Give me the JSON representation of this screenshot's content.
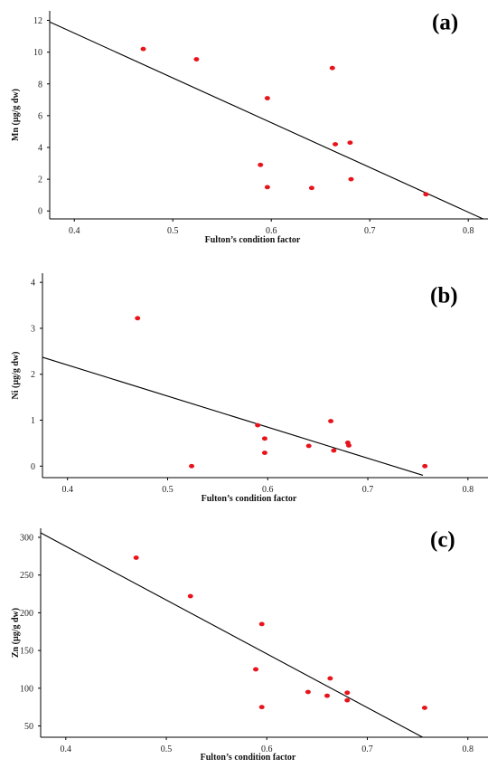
{
  "chart_data": [
    {
      "type": "scatter",
      "panel_label": "(a)",
      "title": "",
      "xlabel": "Fulton’s condition factor",
      "ylabel": "Mn (µg/g dw)",
      "xlim": [
        0.375,
        0.82
      ],
      "ylim": [
        -0.5,
        12.6
      ],
      "x_ticks": [
        0.4,
        0.5,
        0.6,
        0.7,
        0.8
      ],
      "y_ticks": [
        0,
        2,
        4,
        6,
        8,
        10,
        12
      ],
      "point_color": "#e8141c",
      "points": {
        "x": [
          0.47,
          0.524,
          0.589,
          0.596,
          0.596,
          0.641,
          0.662,
          0.665,
          0.68,
          0.681,
          0.757
        ],
        "y": [
          10.2,
          9.55,
          2.9,
          7.1,
          1.5,
          1.45,
          9.0,
          4.2,
          4.3,
          2.0,
          1.05
        ]
      },
      "fit_line": {
        "x": [
          0.375,
          0.815
        ],
        "y": [
          11.9,
          -0.5
        ]
      }
    },
    {
      "type": "scatter",
      "panel_label": "(b)",
      "title": "",
      "xlabel": "Fulton’s condition factor",
      "ylabel": "Ni (µg/g dw)",
      "xlim": [
        0.375,
        0.82
      ],
      "ylim": [
        -0.25,
        4.2
      ],
      "x_ticks": [
        0.4,
        0.5,
        0.6,
        0.7,
        0.8
      ],
      "y_ticks": [
        0,
        1,
        2,
        3,
        4
      ],
      "point_color": "#e8141c",
      "points": {
        "x": [
          0.47,
          0.524,
          0.59,
          0.597,
          0.597,
          0.641,
          0.663,
          0.666,
          0.68,
          0.681,
          0.757
        ],
        "y": [
          3.22,
          0.0,
          0.89,
          0.6,
          0.29,
          0.44,
          0.98,
          0.34,
          0.51,
          0.45,
          0.0
        ]
      },
      "fit_line": {
        "x": [
          0.375,
          0.755
        ],
        "y": [
          2.37,
          -0.2
        ]
      }
    },
    {
      "type": "scatter",
      "panel_label": "(c)",
      "title": "",
      "xlabel": "Fulton’s condition factor",
      "ylabel": "Zn (µg/g dw)",
      "xlim": [
        0.375,
        0.82
      ],
      "ylim": [
        35,
        312
      ],
      "x_ticks": [
        0.4,
        0.5,
        0.6,
        0.7,
        0.8
      ],
      "y_ticks": [
        50,
        100,
        150,
        200,
        250,
        300
      ],
      "point_color": "#e8141c",
      "points": {
        "x": [
          0.47,
          0.524,
          0.589,
          0.595,
          0.595,
          0.641,
          0.66,
          0.663,
          0.68,
          0.68,
          0.757
        ],
        "y": [
          273,
          222,
          125,
          185,
          75,
          95,
          90,
          113,
          94,
          84,
          74
        ]
      },
      "fit_line": {
        "x": [
          0.375,
          0.755
        ],
        "y": [
          306,
          35
        ]
      }
    }
  ]
}
